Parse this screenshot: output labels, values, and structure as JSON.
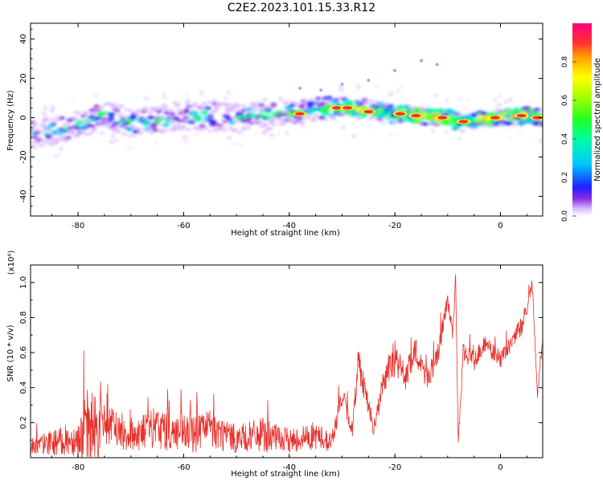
{
  "title": "C2E2.2023.101.15.33.R12",
  "chart_data": [
    {
      "type": "heatmap",
      "xlabel": "Height of straight line (km)",
      "ylabel": "Frequency (Hz)",
      "xlim": [
        -89,
        8
      ],
      "ylim": [
        -50,
        48
      ],
      "x_ticks": [
        -80,
        -60,
        -40,
        -20,
        0
      ],
      "y_ticks": [
        40,
        20,
        0,
        -20,
        -40
      ],
      "colorbar": {
        "label": "Normalized spectral amplitude",
        "range": [
          0.0,
          1.0
        ],
        "ticks": [
          0.0,
          0.2,
          0.4,
          0.6,
          0.8
        ],
        "colors": [
          "#ffffff",
          "#d8b6ff",
          "#8a2be2",
          "#2020ff",
          "#00c8ff",
          "#00ffa0",
          "#22ff22",
          "#a8ff00",
          "#ffff00",
          "#ffa500",
          "#ff3030",
          "#ff0080"
        ]
      },
      "ridge": {
        "x": [
          -89,
          -85,
          -80,
          -75,
          -70,
          -65,
          -60,
          -55,
          -50,
          -45,
          -40,
          -35,
          -30,
          -25,
          -20,
          -15,
          -10,
          -7,
          -5,
          0,
          5,
          8
        ],
        "y": [
          -8,
          -7,
          -4,
          2,
          -3,
          -1,
          1,
          1,
          0,
          1,
          2,
          4,
          5,
          4,
          2,
          1,
          0,
          -3,
          -1,
          0,
          1,
          0
        ]
      }
    },
    {
      "type": "line",
      "xlabel": "Height of straight line (km)",
      "ylabel": "SNR (10 * v/v)",
      "y_multiplier": "(x10⁴)",
      "xlim": [
        -89,
        8
      ],
      "ylim": [
        0,
        1.1
      ],
      "x_ticks": [
        -80,
        -60,
        -40,
        -20,
        0
      ],
      "y_ticks": [
        0.2,
        0.4,
        0.6,
        0.8,
        1.0
      ],
      "series_color": "#e8302a",
      "envelope": {
        "x": [
          -89,
          -80,
          -78,
          -75,
          -70,
          -65,
          -60,
          -55,
          -50,
          -45,
          -42,
          -40,
          -35,
          -32,
          -30,
          -28,
          -27,
          -25,
          -24,
          -22,
          -20,
          -18,
          -16,
          -14,
          -12,
          -10,
          -9,
          -8.5,
          -8,
          -7,
          -5,
          -3,
          0,
          2,
          4,
          5,
          6,
          7,
          8
        ],
        "y": [
          0.06,
          0.1,
          0.12,
          0.18,
          0.12,
          0.16,
          0.12,
          0.15,
          0.1,
          0.12,
          0.1,
          0.09,
          0.12,
          0.08,
          0.35,
          0.15,
          0.55,
          0.3,
          0.15,
          0.45,
          0.55,
          0.45,
          0.6,
          0.45,
          0.55,
          0.9,
          0.7,
          1.05,
          0.08,
          0.6,
          0.55,
          0.65,
          0.55,
          0.65,
          0.75,
          0.85,
          1.0,
          0.35,
          0.7
        ],
        "noise": [
          0.05,
          0.1,
          0.28,
          0.12,
          0.1,
          0.12,
          0.12,
          0.12,
          0.08,
          0.1,
          0.08,
          0.07,
          0.08,
          0.06,
          0.06,
          0.05,
          0.1,
          0.06,
          0.05,
          0.08,
          0.1,
          0.08,
          0.08,
          0.07,
          0.07,
          0.05,
          0.05,
          0.02,
          0.02,
          0.05,
          0.06,
          0.05,
          0.05,
          0.05,
          0.06,
          0.05,
          0.03,
          0.03,
          0.04
        ]
      }
    }
  ]
}
